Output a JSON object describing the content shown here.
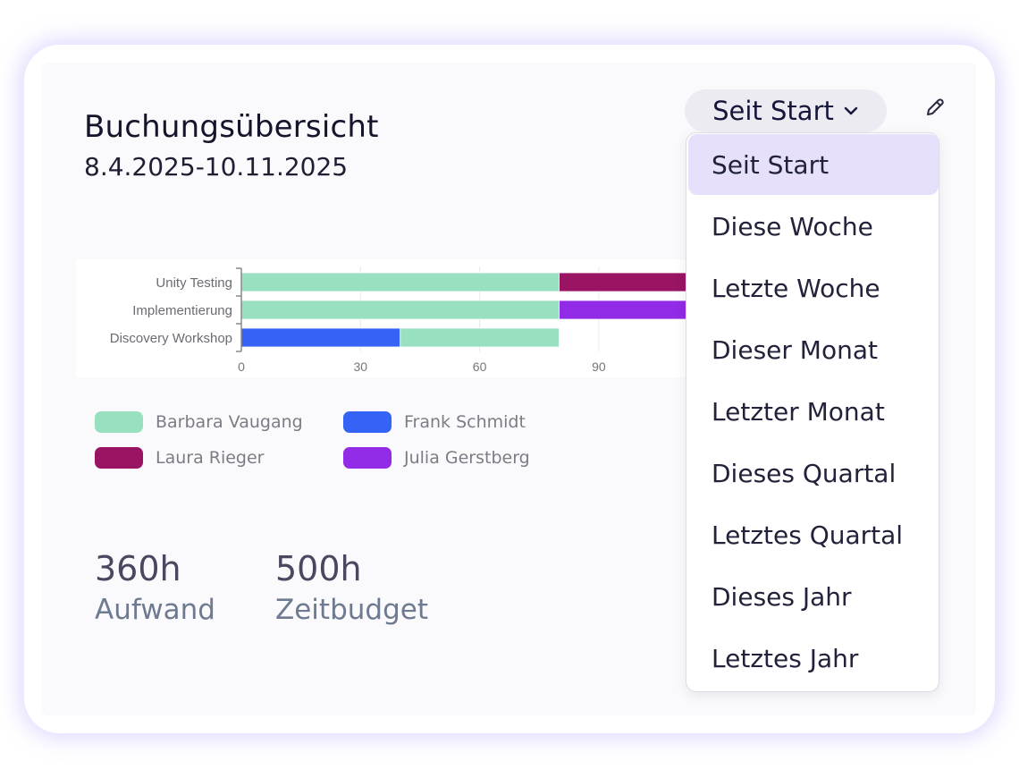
{
  "header": {
    "title": "Buchungsübersicht",
    "date_range": "8.4.2025-10.11.2025"
  },
  "filter": {
    "selected": "Seit Start",
    "options": [
      "Seit Start",
      "Diese Woche",
      "Letzte Woche",
      "Dieser Monat",
      "Letzter Monat",
      "Dieses Quartal",
      "Letztes Quartal",
      "Dieses Jahr",
      "Letztes Jahr"
    ]
  },
  "icons": {
    "dropdown": "chevron-down-icon",
    "edit": "pencil-icon"
  },
  "chart_data": {
    "type": "bar",
    "orientation": "horizontal",
    "stacked": true,
    "categories": [
      "Unity Testing",
      "Implementierung",
      "Discovery Workshop"
    ],
    "xticks": [
      0,
      30,
      60,
      90
    ],
    "grid": true,
    "legend": "bottom",
    "series": [
      {
        "name": "Barbara Vaugang",
        "color": "#98e0c0",
        "values": [
          80,
          80,
          40
        ]
      },
      {
        "name": "Frank Schmidt",
        "color": "#3563f5",
        "values": [
          0,
          0,
          40
        ]
      },
      {
        "name": "Laura Rieger",
        "color": "#9a1464",
        "values": [
          60,
          0,
          0
        ]
      },
      {
        "name": "Julia Gerstberg",
        "color": "#922be6",
        "values": [
          0,
          60,
          0
        ]
      }
    ],
    "stack_order": [
      [
        "Barbara Vaugang",
        "Laura Rieger"
      ],
      [
        "Barbara Vaugang",
        "Julia Gerstberg"
      ],
      [
        "Frank Schmidt",
        "Barbara Vaugang"
      ]
    ]
  },
  "stats": [
    {
      "value": "360h",
      "label": "Aufwand"
    },
    {
      "value": "500h",
      "label": "Zeitbudget"
    }
  ]
}
